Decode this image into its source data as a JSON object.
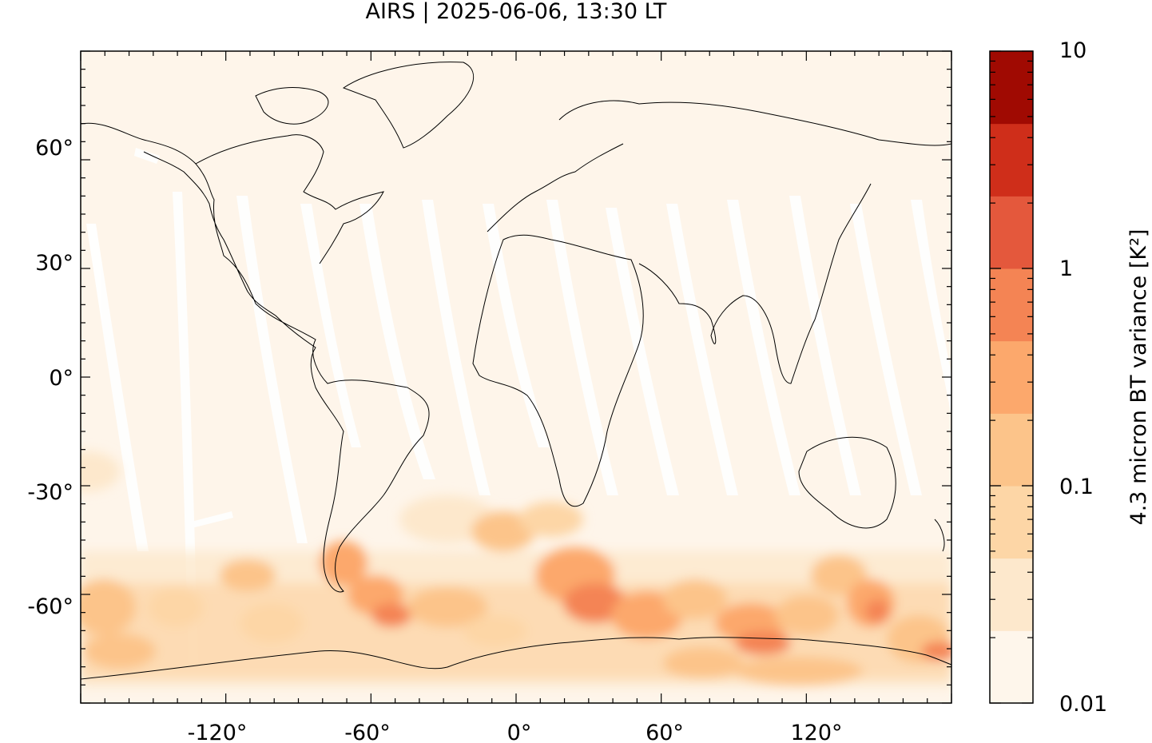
{
  "title": "AIRS | 2025-06-06, 13:30 LT",
  "map": {
    "lon_range": [
      -180,
      180
    ],
    "lat_range": [
      -90,
      90
    ],
    "x_ticks": [
      "-120°",
      "-60°",
      "0°",
      "60°",
      "120°"
    ],
    "y_ticks": [
      "60°",
      "30°",
      "0°",
      "-30°",
      "-60°"
    ],
    "background_color": "#fef5ea",
    "swath_gap_color": "#ffffff",
    "coastline_color": "#000000"
  },
  "colorbar": {
    "label": "4.3 micron BT variance [K²]",
    "tick_labels": [
      "10",
      "1",
      "0.1",
      "0.01"
    ],
    "scale": "log",
    "range": [
      0.01,
      10
    ],
    "colors": [
      "#fef6eb",
      "#fde8cc",
      "#fdd6a6",
      "#fcc48a",
      "#fca86c",
      "#f48454",
      "#e4583c",
      "#cf2e1a",
      "#a00a02"
    ]
  },
  "chart_data": {
    "type": "heatmap",
    "title": "AIRS | 2025-06-06, 13:30 LT",
    "xlabel": "",
    "ylabel": "",
    "x_ticks": [
      -120,
      -60,
      0,
      60,
      120
    ],
    "y_ticks": [
      60,
      30,
      0,
      -30,
      -60
    ],
    "colorbar_label": "4.3 micron BT variance [K²]",
    "colorbar_scale": "log",
    "colorbar_range": [
      0.01,
      10
    ],
    "colorbar_ticks": [
      10,
      1,
      0.1,
      0.01
    ],
    "hotspots": [
      {
        "lon": -170,
        "lat": -62,
        "value": 0.5
      },
      {
        "lon": -120,
        "lat": -60,
        "value": 0.2
      },
      {
        "lon": -65,
        "lat": -55,
        "value": 0.8
      },
      {
        "lon": -50,
        "lat": -62,
        "value": 1.0
      },
      {
        "lon": -10,
        "lat": -40,
        "value": 0.5
      },
      {
        "lon": 25,
        "lat": -52,
        "value": 1.0
      },
      {
        "lon": 35,
        "lat": -60,
        "value": 0.8
      },
      {
        "lon": 60,
        "lat": -63,
        "value": 0.5
      },
      {
        "lon": 95,
        "lat": -68,
        "value": 1.5
      },
      {
        "lon": 115,
        "lat": -65,
        "value": 0.5
      },
      {
        "lon": 145,
        "lat": -62,
        "value": 1.5
      },
      {
        "lon": 175,
        "lat": -72,
        "value": 0.8
      }
    ]
  }
}
